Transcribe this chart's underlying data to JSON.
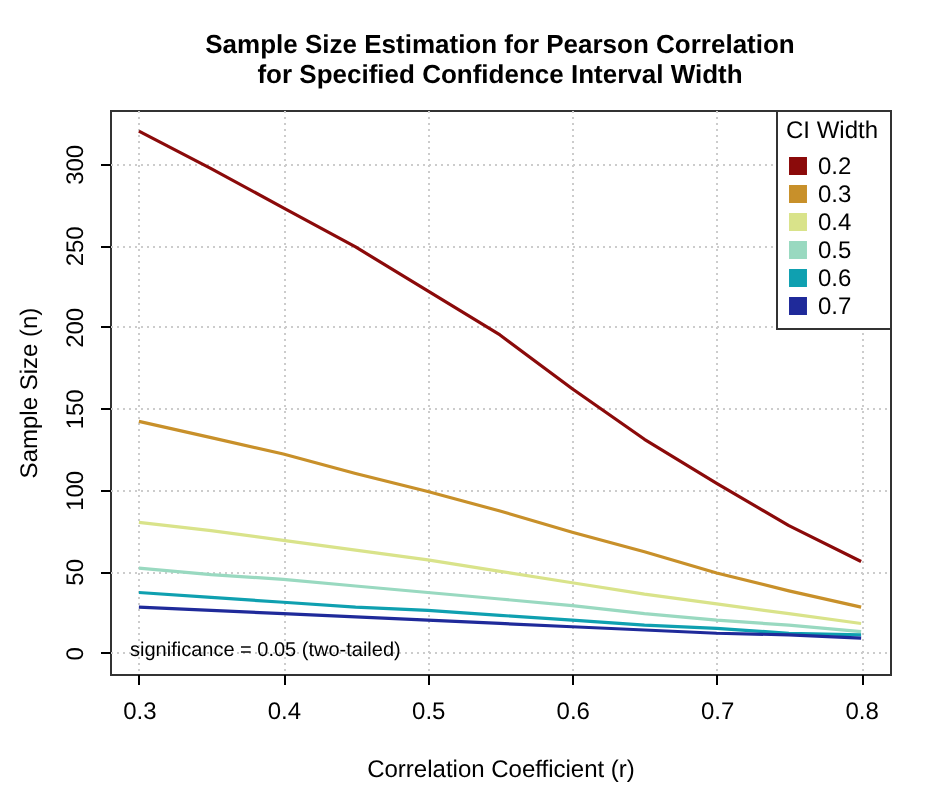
{
  "chart_data": {
    "type": "line",
    "title": "Sample Size Estimation for Pearson Correlation\nfor Specified Confidence Interval Width",
    "xlabel": "Correlation Coefficient (r)",
    "ylabel": "Sample Size (n)",
    "legend_title": "CI Width",
    "annotations": [
      "significance = 0.05 (two-tailed)"
    ],
    "x": [
      0.3,
      0.35,
      0.4,
      0.45,
      0.5,
      0.55,
      0.6,
      0.65,
      0.7,
      0.75,
      0.8
    ],
    "series": [
      {
        "name": "0.2",
        "color": "#8b0a0a",
        "values": [
          320,
          297,
          273,
          249,
          222,
          195,
          162,
          131,
          104,
          78,
          56
        ]
      },
      {
        "name": "0.3",
        "color": "#c8902a",
        "values": [
          142,
          132,
          122,
          110,
          99,
          87,
          74,
          62,
          49,
          38,
          28
        ]
      },
      {
        "name": "0.4",
        "color": "#d9e38a",
        "values": [
          80,
          75,
          69,
          63,
          57,
          50,
          43,
          36,
          30,
          24,
          18
        ]
      },
      {
        "name": "0.5",
        "color": "#99d9c0",
        "values": [
          52,
          48,
          45,
          41,
          37,
          33,
          29,
          24,
          20,
          17,
          13
        ]
      },
      {
        "name": "0.6",
        "color": "#0fa0b0",
        "values": [
          37,
          34,
          31,
          28,
          26,
          23,
          20,
          17,
          15,
          12,
          11
        ]
      },
      {
        "name": "0.7",
        "color": "#1f2a9a",
        "values": [
          28,
          26,
          24,
          22,
          20,
          18,
          16,
          14,
          12,
          11,
          9
        ]
      }
    ],
    "xlim": [
      0.28,
      0.82
    ],
    "ylim": [
      -13,
      333
    ],
    "xticks": [
      0.3,
      0.4,
      0.5,
      0.6,
      0.7,
      0.8
    ],
    "yticks": [
      0,
      50,
      100,
      150,
      200,
      250,
      300
    ],
    "grid": true,
    "legend": "top right"
  }
}
